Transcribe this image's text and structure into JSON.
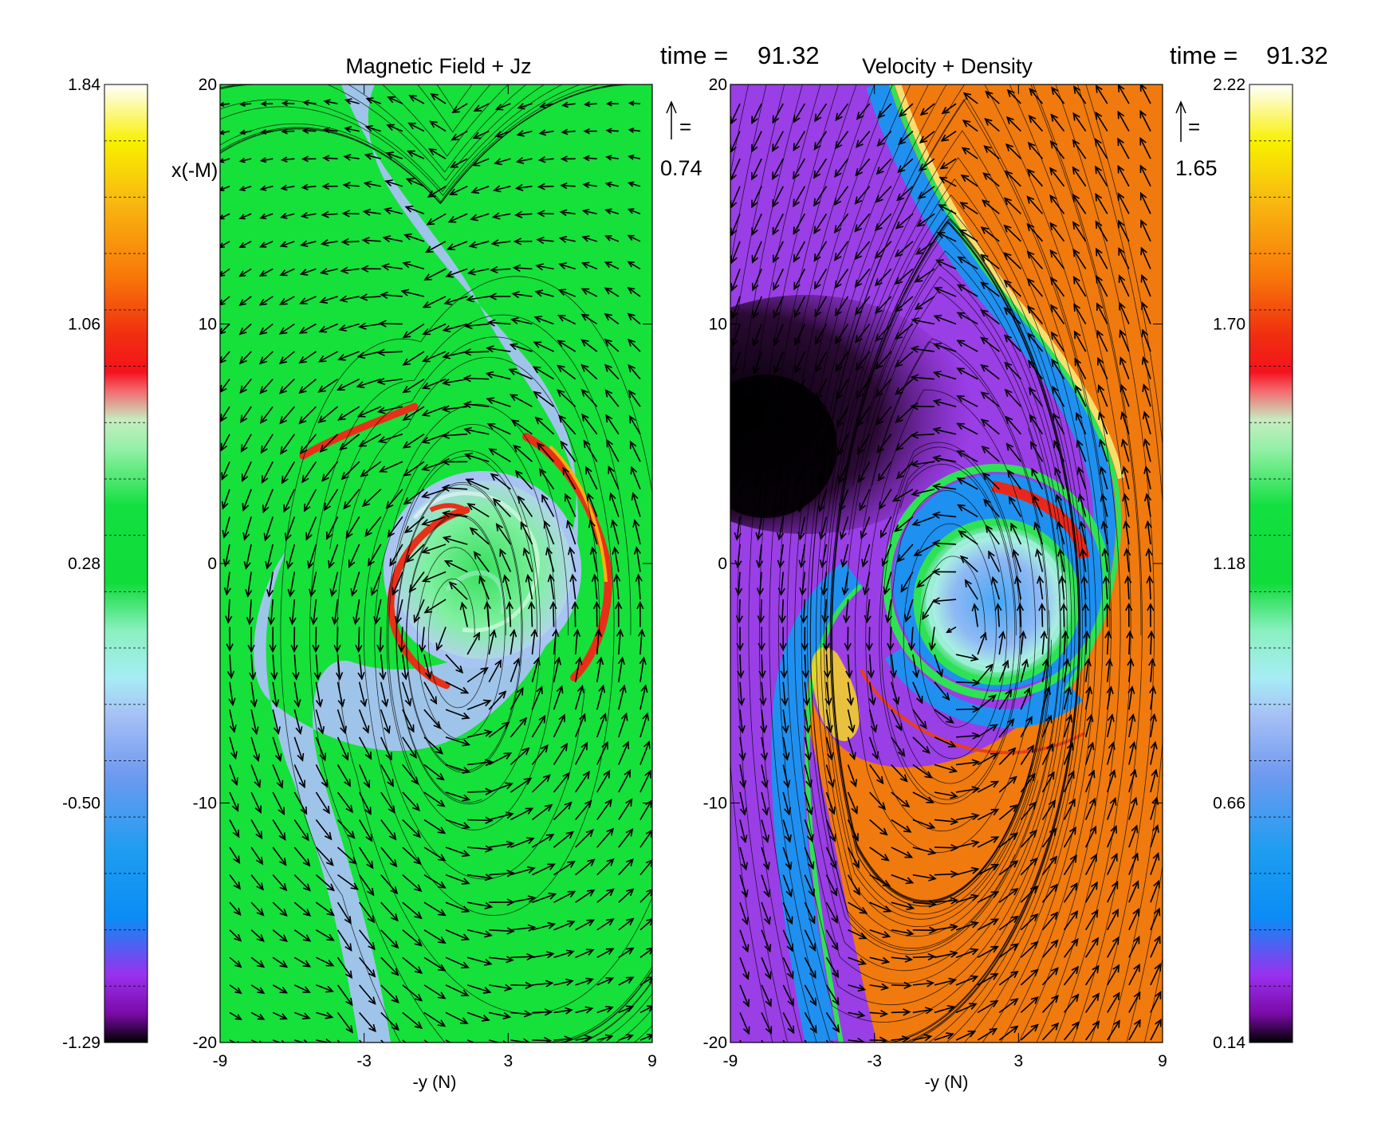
{
  "chart_data": [
    {
      "type": "heatmap",
      "title": "Magnetic Field + Jz",
      "time_label": "time =",
      "time_value": "91.32",
      "xlabel": "-y (N)",
      "ylabel": "x(-M)",
      "xlim": [
        -9,
        9
      ],
      "ylim": [
        -20,
        20
      ],
      "x_ticks": [
        "-9",
        "-3",
        "3",
        "9"
      ],
      "y_ticks": [
        "20",
        "10",
        "0",
        "-10",
        "-20"
      ],
      "arrow_scale_label": "=",
      "arrow_scale_value": "0.74",
      "colorbar": {
        "ticks": [
          "1.84",
          "1.06",
          "0.28",
          "-0.50",
          "-1.29"
        ],
        "range": [
          -1.29,
          1.84
        ]
      },
      "background_value": 0.28,
      "colors": {
        "field": "#1ee23a",
        "band": "#aac4f2",
        "current": "#e8321c"
      }
    },
    {
      "type": "heatmap",
      "title": "Velocity + Density",
      "time_label": "time =",
      "time_value": "91.32",
      "xlabel": "-y (N)",
      "ylabel": "",
      "xlim": [
        -9,
        9
      ],
      "ylim": [
        -20,
        20
      ],
      "x_ticks": [
        "-9",
        "-3",
        "3",
        "9"
      ],
      "y_ticks": [
        "20",
        "10",
        "0",
        "-10",
        "-20"
      ],
      "arrow_scale_label": "=",
      "arrow_scale_value": "1.65",
      "colorbar": {
        "ticks": [
          "2.22",
          "1.70",
          "1.18",
          "0.66",
          "0.14"
        ],
        "range": [
          0.14,
          2.22
        ]
      },
      "colors": {
        "low": "#9a40e8",
        "high": "#f07a0e",
        "dark": "#1a0a1a"
      }
    }
  ]
}
